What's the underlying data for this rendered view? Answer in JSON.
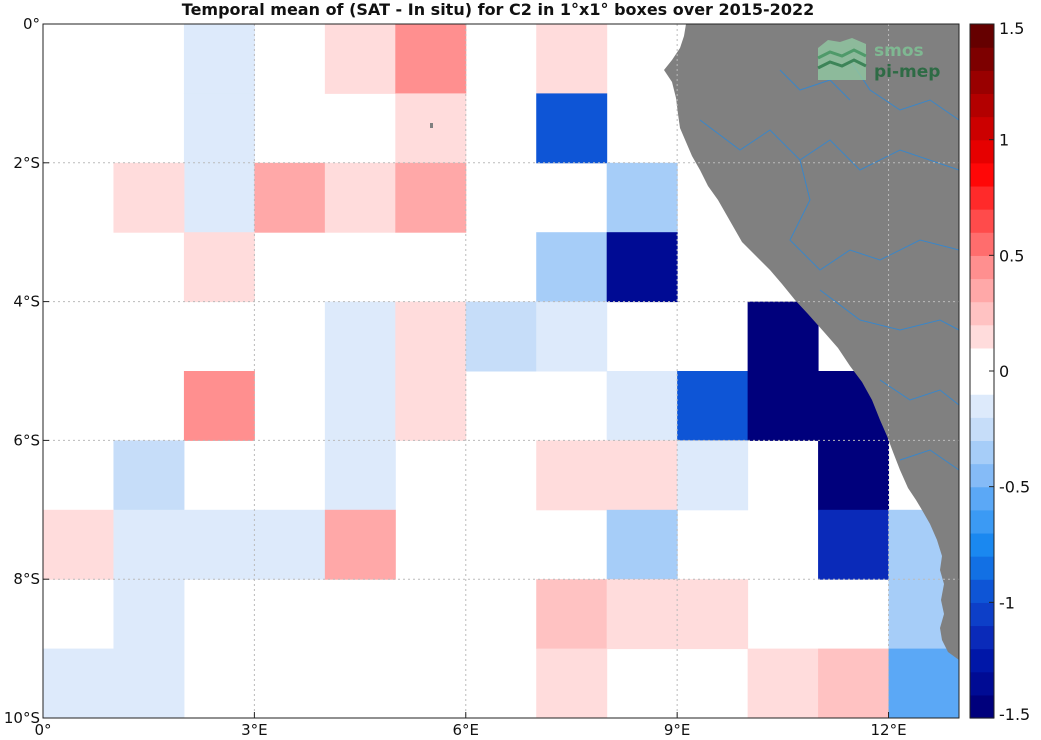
{
  "chart_data": {
    "type": "heatmap",
    "title": "Temporal mean of (SAT - In situ) for C2 in 1°x1° boxes over 2015-2022",
    "x_range": [
      0,
      13
    ],
    "y_range": [
      -10,
      0
    ],
    "x_ticks": [
      {
        "value": 0,
        "label": "0°"
      },
      {
        "value": 3,
        "label": "3°E"
      },
      {
        "value": 6,
        "label": "6°E"
      },
      {
        "value": 9,
        "label": "9°E"
      },
      {
        "value": 12,
        "label": "12°E"
      }
    ],
    "y_ticks": [
      {
        "value": 0,
        "label": "0°"
      },
      {
        "value": -2,
        "label": "2°S"
      },
      {
        "value": -4,
        "label": "4°S"
      },
      {
        "value": -6,
        "label": "6°S"
      },
      {
        "value": -8,
        "label": "8°S"
      },
      {
        "value": -10,
        "label": "10°S"
      }
    ],
    "grid": true,
    "colorbar": {
      "range": [
        -1.5,
        1.5
      ],
      "ticks": [
        {
          "value": 1.5,
          "label": "1.5"
        },
        {
          "value": 1,
          "label": "1"
        },
        {
          "value": 0.5,
          "label": "0.5"
        },
        {
          "value": 0,
          "label": "0"
        },
        {
          "value": -0.5,
          "label": "-0.5"
        },
        {
          "value": -1,
          "label": "-1"
        },
        {
          "value": -1.5,
          "label": "-1.5"
        }
      ]
    },
    "cells": [
      {
        "lon": 2,
        "lat": 0,
        "value": -0.1
      },
      {
        "lon": 2,
        "lat": -1,
        "value": -0.1
      },
      {
        "lon": 2,
        "lat": -2,
        "value": -0.1
      },
      {
        "lon": 4,
        "lat": 0,
        "value": 0.15
      },
      {
        "lon": 5,
        "lat": 0,
        "value": 0.42
      },
      {
        "lon": 5,
        "lat": -1,
        "value": 0.15
      },
      {
        "lon": 7,
        "lat": 0,
        "value": 0.15
      },
      {
        "lon": 7,
        "lat": -1,
        "value": -1.0
      },
      {
        "lon": 1,
        "lat": -2,
        "value": 0.15
      },
      {
        "lon": 3,
        "lat": -2,
        "value": 0.3
      },
      {
        "lon": 4,
        "lat": -2,
        "value": 0.15
      },
      {
        "lon": 5,
        "lat": -2,
        "value": 0.3
      },
      {
        "lon": 8,
        "lat": -2,
        "value": -0.38
      },
      {
        "lon": 2,
        "lat": -3,
        "value": 0.15
      },
      {
        "lon": 7,
        "lat": -3,
        "value": -0.38
      },
      {
        "lon": 8,
        "lat": -3,
        "value": -1.35
      },
      {
        "lon": 4,
        "lat": -4,
        "value": -0.1
      },
      {
        "lon": 5,
        "lat": -4,
        "value": 0.15
      },
      {
        "lon": 6,
        "lat": -4,
        "value": -0.22
      },
      {
        "lon": 7,
        "lat": -4,
        "value": -0.1
      },
      {
        "lon": 10,
        "lat": -4,
        "value": -1.5
      },
      {
        "lon": 2,
        "lat": -5,
        "value": 0.45
      },
      {
        "lon": 4,
        "lat": -5,
        "value": -0.1
      },
      {
        "lon": 5,
        "lat": -5,
        "value": 0.15
      },
      {
        "lon": 8,
        "lat": -5,
        "value": -0.1
      },
      {
        "lon": 9,
        "lat": -5,
        "value": -1.0
      },
      {
        "lon": 10,
        "lat": -5,
        "value": -1.5
      },
      {
        "lon": 11,
        "lat": -5,
        "value": -1.5
      },
      {
        "lon": 1,
        "lat": -6,
        "value": -0.22
      },
      {
        "lon": 4,
        "lat": -6,
        "value": -0.1
      },
      {
        "lon": 7,
        "lat": -6,
        "value": 0.15
      },
      {
        "lon": 8,
        "lat": -6,
        "value": 0.15
      },
      {
        "lon": 9,
        "lat": -6,
        "value": -0.1
      },
      {
        "lon": 11,
        "lat": -6,
        "value": -1.5
      },
      {
        "lon": 0,
        "lat": -7,
        "value": 0.15
      },
      {
        "lon": 1,
        "lat": -7,
        "value": -0.1
      },
      {
        "lon": 2,
        "lat": -7,
        "value": -0.1
      },
      {
        "lon": 3,
        "lat": -7,
        "value": -0.1
      },
      {
        "lon": 4,
        "lat": -7,
        "value": 0.32
      },
      {
        "lon": 8,
        "lat": -7,
        "value": -0.3
      },
      {
        "lon": 11,
        "lat": -7,
        "value": -1.1
      },
      {
        "lon": 12,
        "lat": -7,
        "value": -0.38
      },
      {
        "lon": 1,
        "lat": -8,
        "value": -0.1
      },
      {
        "lon": 7,
        "lat": -8,
        "value": 0.25
      },
      {
        "lon": 8,
        "lat": -8,
        "value": 0.15
      },
      {
        "lon": 9,
        "lat": -8,
        "value": 0.15
      },
      {
        "lon": 12,
        "lat": -8,
        "value": -0.38
      },
      {
        "lon": 0,
        "lat": -9,
        "value": -0.1
      },
      {
        "lon": 1,
        "lat": -9,
        "value": -0.1
      },
      {
        "lon": 7,
        "lat": -9,
        "value": 0.15
      },
      {
        "lon": 10,
        "lat": -9,
        "value": 0.15
      },
      {
        "lon": 11,
        "lat": -9,
        "value": 0.25
      },
      {
        "lon": 12,
        "lat": -9,
        "value": -0.52
      }
    ]
  },
  "colors": {
    "land": "#808080",
    "river": "#3a86c8",
    "logo_green": "#5e9c72",
    "logo_dark": "#2e6b45",
    "grid": "#bbbbbb"
  },
  "logo": {
    "line1": "smos",
    "line2": "pi-mep",
    "icon": "smos-waves-logo"
  }
}
